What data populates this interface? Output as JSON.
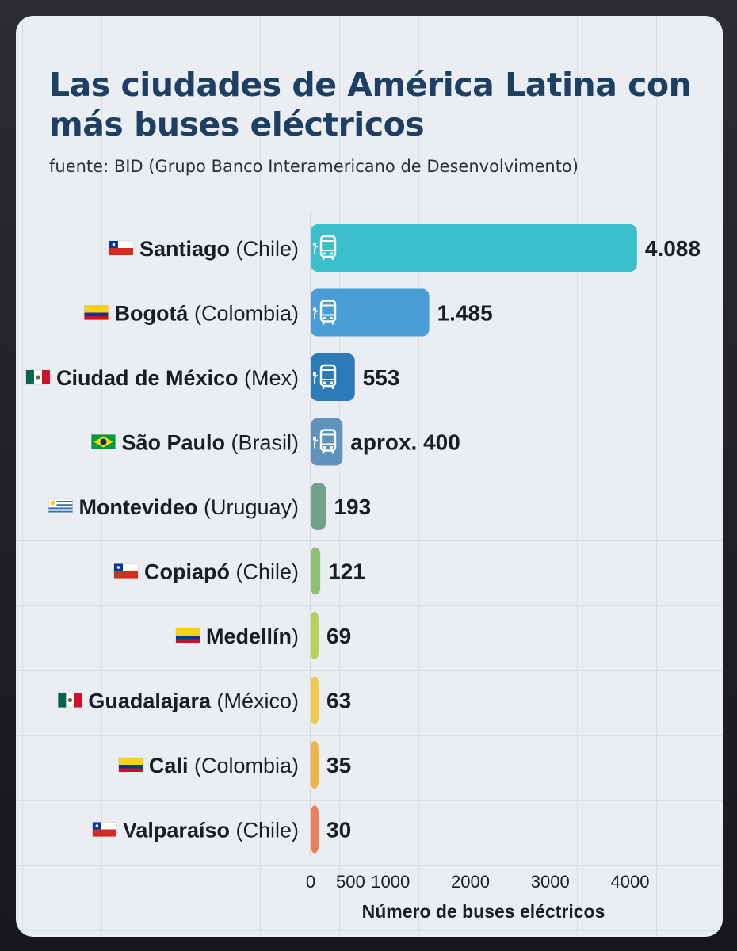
{
  "chart_data": {
    "type": "bar",
    "orientation": "horizontal",
    "title": "Las ciudades de América Latina con más buses eléctricos",
    "subtitle": "fuente: BID (Grupo Banco Interamericano de Desenvolvimento)",
    "xlabel": "Número de buses eléctricos",
    "xlim": [
      0,
      4000
    ],
    "xticks": [
      "0",
      "500",
      "1000",
      "2000",
      "3000",
      "4000"
    ],
    "xtick_values": [
      0,
      500,
      1000,
      2000,
      3000,
      4000
    ],
    "grid": true,
    "categories": [
      {
        "city": "Santiago",
        "country": " (Chile)",
        "flag": "chile-flag",
        "value": 4088,
        "value_label": "4.088",
        "color": "#3bbfcc",
        "icon": "electric-bus-icon"
      },
      {
        "city": "Bogotá",
        "country": " (Colombia)",
        "flag": "colombia-flag",
        "value": 1485,
        "value_label": "1.485",
        "color": "#4a9ed6",
        "icon": "electric-bus-icon"
      },
      {
        "city": "Ciudad de México",
        "country": " (Mex)",
        "flag": "mexico-flag",
        "value": 553,
        "value_label": "553",
        "color": "#2c7ab8",
        "icon": "electric-bus-icon"
      },
      {
        "city": "São Paulo",
        "country": " (Brasil)",
        "flag": "brazil-flag",
        "value": 400,
        "value_label": "aprox. 400",
        "color": "#5f93bd",
        "icon": "electric-bus-icon"
      },
      {
        "city": "Montevideo",
        "country": " (Uruguay)",
        "flag": "uruguay-flag",
        "value": 193,
        "value_label": "193",
        "color": "#72a08c",
        "icon": "electric-bus-icon"
      },
      {
        "city": "Copiapó",
        "country": " (Chile)",
        "flag": "chile-flag",
        "value": 121,
        "value_label": "121",
        "color": "#8fbf73",
        "icon": "bus-icon"
      },
      {
        "city": "Medellín",
        "country": ")",
        "flag": "colombia-flag",
        "value": 69,
        "value_label": "69",
        "color": "#b9cf5a",
        "icon": "bus-icon"
      },
      {
        "city": "Guadalajara",
        "country": " (México)",
        "flag": "mexico-flag",
        "value": 63,
        "value_label": "63",
        "color": "#f2c84b",
        "icon": "bus-icon"
      },
      {
        "city": "Cali",
        "country": " (Colombia)",
        "flag": "colombia-flag",
        "value": 35,
        "value_label": "35",
        "color": "#f2b347",
        "icon": "bus-icon"
      },
      {
        "city": "Valparaíso",
        "country": " (Chile)",
        "flag": "chile-flag",
        "value": 30,
        "value_label": "30",
        "color": "#e9805a",
        "icon": "bus-icon"
      }
    ]
  }
}
